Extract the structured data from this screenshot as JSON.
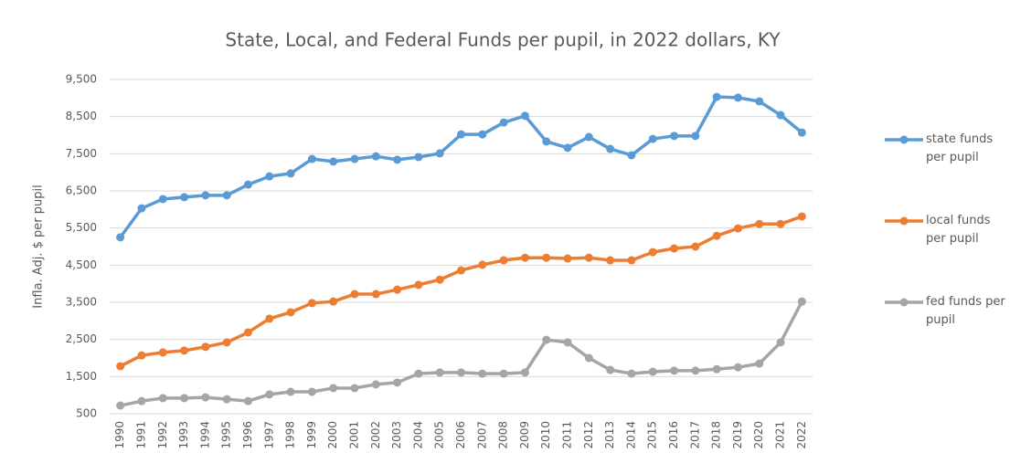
{
  "chart_data": {
    "type": "line",
    "title": "State, Local, and Federal Funds per pupil, in 2022 dollars, KY",
    "y_label": "Infla. Adj. $ per pupil",
    "categories": [
      "1990",
      "1991",
      "1992",
      "1993",
      "1994",
      "1995",
      "1996",
      "1997",
      "1998",
      "1999",
      "2000",
      "2001",
      "2002",
      "2003",
      "2004",
      "2005",
      "2006",
      "2007",
      "2008",
      "2009",
      "2010",
      "2011",
      "2012",
      "2013",
      "2014",
      "2015",
      "2016",
      "2017",
      "2018",
      "2019",
      "2020",
      "2021",
      "2022"
    ],
    "series": [
      {
        "name": "state funds per pupil",
        "color": "#5b9bd5",
        "values": [
          5250,
          6030,
          6280,
          6330,
          6380,
          6380,
          6670,
          6890,
          6970,
          7360,
          7290,
          7360,
          7430,
          7340,
          7410,
          7510,
          8020,
          8020,
          8340,
          8520,
          7830,
          7660,
          7950,
          7630,
          7460,
          7900,
          7980,
          7980,
          9030,
          9010,
          8910,
          8540,
          8070
        ]
      },
      {
        "name": "local funds per pupil",
        "color": "#ed7d31",
        "values": [
          1780,
          2070,
          2150,
          2200,
          2300,
          2420,
          2690,
          3060,
          3230,
          3480,
          3520,
          3720,
          3720,
          3840,
          3970,
          4110,
          4360,
          4510,
          4630,
          4700,
          4700,
          4680,
          4700,
          4630,
          4630,
          4850,
          4950,
          5000,
          5290,
          5490,
          5610,
          5610,
          5810
        ]
      },
      {
        "name": "fed funds per pupil",
        "color": "#a5a5a5",
        "values": [
          720,
          840,
          920,
          920,
          940,
          890,
          840,
          1020,
          1090,
          1090,
          1190,
          1190,
          1290,
          1340,
          1580,
          1610,
          1610,
          1580,
          1580,
          1610,
          2490,
          2420,
          2000,
          1680,
          1580,
          1630,
          1660,
          1660,
          1700,
          1750,
          1850,
          2420,
          3520
        ]
      }
    ],
    "ylim": [
      500,
      9500
    ],
    "yticks": [
      500,
      {
        "value": 1500,
        "label": "1,500"
      },
      {
        "value": 2500,
        "label": "2,500"
      },
      {
        "value": 3500,
        "label": "3,500"
      },
      {
        "value": 4500,
        "label": "4,500"
      },
      {
        "value": 5500,
        "label": "5,500"
      },
      {
        "value": 6500,
        "label": "6,500"
      },
      {
        "value": 7500,
        "label": "7,500"
      },
      {
        "value": 8500,
        "label": "8,500"
      },
      {
        "value": 9500,
        "label": "9,500"
      }
    ],
    "grid": true,
    "legend": "right"
  }
}
